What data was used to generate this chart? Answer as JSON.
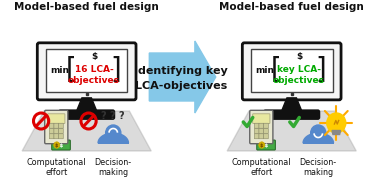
{
  "bg_color": "#ffffff",
  "title_left": "Model-based fuel design",
  "title_right": "Model-based fuel design",
  "arrow_color": "#85C8E8",
  "arrow_text1": "Identifying key",
  "arrow_text2": "LCA-objectives",
  "monitor_body_color": "#f5f5f5",
  "monitor_border": "#111111",
  "screen_bg": "#ffffff",
  "bracket_color": "#111111",
  "dollar_color": "#111111",
  "min_color": "#111111",
  "lca_color_left": "#dd0000",
  "lca_text_left": "16 LCA-\nobjectives",
  "lca_color_right": "#00aa00",
  "lca_text_right": "key LCA-\nobjectives",
  "comp_label": "Computational\neffort",
  "dec_label": "Decision-\nmaking",
  "label_color": "#111111",
  "gray_cone": "#999999",
  "red_no_color": "#dd0000",
  "green_check_color": "#33aa33",
  "person_color": "#5588cc",
  "calc_body": "#e8e8d0",
  "calc_screen": "#e8e8a0",
  "calc_btn": "#cccc99",
  "bill_color": "#44aa44",
  "bulb_color": "#ffcc00",
  "bulb_ray": "#ffaa00",
  "title_fontsize": 7.5,
  "label_fontsize": 5.8,
  "screen_text_fontsize": 6.5,
  "arrow_text_fontsize": 8.0
}
